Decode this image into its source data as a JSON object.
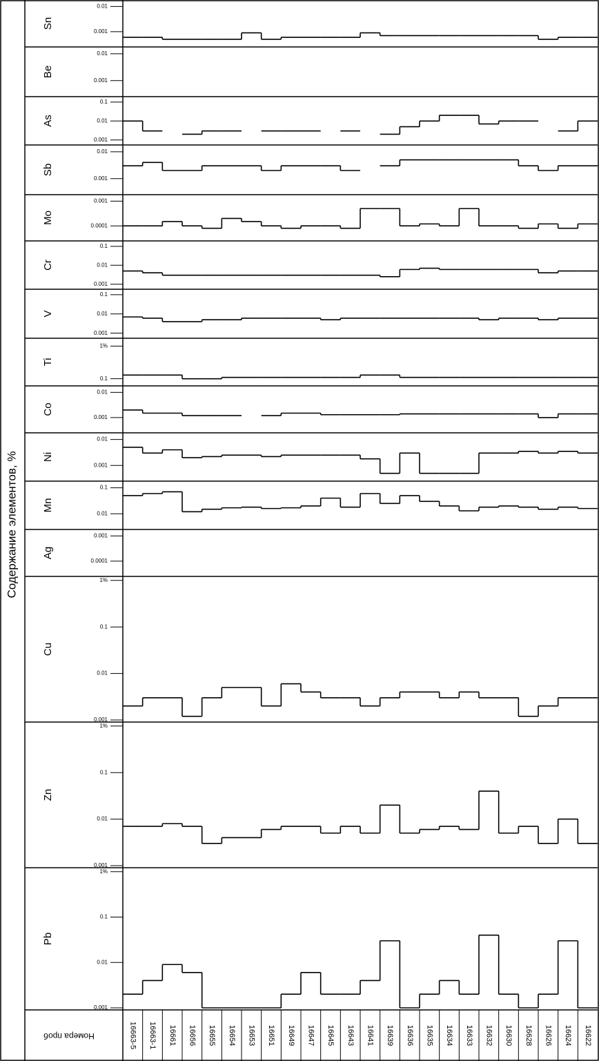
{
  "chart_data": {
    "type": "step",
    "title": "Содержание элементов, %",
    "x_label": "Номера проб",
    "log_scale": true,
    "categories": [
      "16663-5",
      "16663-1",
      "16661",
      "16656",
      "16655",
      "16654",
      "16653",
      "16651",
      "16649",
      "16647",
      "16645",
      "16643",
      "16641",
      "16639",
      "16636",
      "16635",
      "16634",
      "16633",
      "16632",
      "16630",
      "16628",
      "16626",
      "16624",
      "16622"
    ],
    "panels": [
      {
        "name": "Sn",
        "ylim": [
          0.0003,
          0.015
        ],
        "yticks": [
          0.001,
          0.01
        ],
        "values": [
          0.0006,
          0.0006,
          0.0005,
          0.0005,
          0.0005,
          0.0005,
          0.0009,
          0.0005,
          0.0006,
          0.0006,
          0.0006,
          0.0006,
          0.0009,
          0.0007,
          0.0007,
          0.0007,
          0.0007,
          0.0007,
          0.0007,
          0.0007,
          0.0007,
          0.0005,
          0.0006,
          0.0006
        ]
      },
      {
        "name": "Be",
        "ylim": [
          0.0003,
          0.015
        ],
        "yticks": [
          0.001,
          0.01
        ],
        "values": [
          null,
          null,
          null,
          null,
          null,
          null,
          null,
          null,
          null,
          null,
          null,
          null,
          null,
          null,
          null,
          null,
          null,
          null,
          null,
          null,
          null,
          null,
          null,
          null
        ]
      },
      {
        "name": "As",
        "ylim": [
          0.0007,
          0.15
        ],
        "yticks": [
          0.001,
          0.01,
          0.1
        ],
        "values": [
          0.01,
          0.003,
          null,
          0.002,
          0.003,
          0.003,
          null,
          0.003,
          0.003,
          0.003,
          null,
          0.003,
          null,
          0.002,
          0.005,
          0.01,
          0.02,
          0.02,
          0.007,
          0.01,
          0.01,
          null,
          0.003,
          0.01
        ]
      },
      {
        "name": "Sb",
        "ylim": [
          0.0003,
          0.015
        ],
        "yticks": [
          0.001,
          0.01
        ],
        "values": [
          0.003,
          0.004,
          0.002,
          0.002,
          0.003,
          0.003,
          0.003,
          0.002,
          0.003,
          0.003,
          0.003,
          0.002,
          null,
          0.003,
          0.005,
          0.005,
          0.005,
          0.005,
          0.005,
          0.005,
          0.003,
          0.002,
          0.003,
          0.003
        ]
      },
      {
        "name": "Mo",
        "ylim": [
          3e-05,
          0.0015
        ],
        "yticks": [
          0.0001,
          0.001
        ],
        "values": [
          0.0001,
          0.0001,
          0.00015,
          0.0001,
          8e-05,
          0.0002,
          0.00015,
          0.0001,
          8e-05,
          0.0001,
          0.0001,
          8e-05,
          0.0005,
          0.0005,
          0.0001,
          0.00012,
          0.0001,
          0.0005,
          0.0001,
          0.0001,
          8e-05,
          0.00012,
          8e-05,
          0.00012
        ]
      },
      {
        "name": "Cr",
        "ylim": [
          0.0007,
          0.15
        ],
        "yticks": [
          0.001,
          0.01,
          0.1
        ],
        "values": [
          0.005,
          0.004,
          0.003,
          0.003,
          0.003,
          0.003,
          0.003,
          0.003,
          0.003,
          0.003,
          0.003,
          0.003,
          0.003,
          0.0025,
          0.006,
          0.007,
          0.006,
          0.006,
          0.006,
          0.006,
          0.006,
          0.004,
          0.005,
          0.005
        ]
      },
      {
        "name": "V",
        "ylim": [
          0.0007,
          0.15
        ],
        "yticks": [
          0.001,
          0.01,
          0.1
        ],
        "values": [
          0.007,
          0.006,
          0.004,
          0.004,
          0.005,
          0.005,
          0.006,
          0.006,
          0.006,
          0.006,
          0.005,
          0.006,
          0.006,
          0.006,
          0.006,
          0.006,
          0.006,
          0.006,
          0.005,
          0.006,
          0.006,
          0.005,
          0.006,
          0.006
        ]
      },
      {
        "name": "Ti",
        "ylim": [
          0.07,
          1.5
        ],
        "yticks": [
          0.1,
          {
            "value": 1,
            "label": "1%"
          }
        ],
        "values": [
          0.13,
          0.13,
          0.13,
          0.1,
          0.1,
          0.11,
          0.11,
          0.11,
          0.11,
          0.11,
          0.11,
          0.11,
          0.13,
          0.13,
          0.11,
          0.11,
          0.11,
          0.11,
          0.11,
          0.11,
          0.11,
          0.11,
          0.11,
          0.11
        ]
      },
      {
        "name": "Co",
        "ylim": [
          0.0003,
          0.015
        ],
        "yticks": [
          0.001,
          0.01
        ],
        "values": [
          0.002,
          0.0015,
          0.0015,
          0.0012,
          0.0012,
          0.0012,
          null,
          0.0012,
          0.0015,
          0.0015,
          0.0013,
          0.0013,
          0.0013,
          0.0013,
          0.0014,
          0.0014,
          0.0014,
          0.0014,
          0.0014,
          0.0014,
          0.0014,
          0.001,
          0.0014,
          0.0014
        ]
      },
      {
        "name": "Ni",
        "ylim": [
          0.0003,
          0.015
        ],
        "yticks": [
          0.001,
          0.01
        ],
        "values": [
          0.005,
          0.003,
          0.004,
          0.002,
          0.0022,
          0.0025,
          0.0025,
          0.0022,
          0.0025,
          0.0025,
          0.0025,
          0.0025,
          0.0018,
          0.0005,
          0.003,
          0.0005,
          0.0005,
          0.0005,
          0.003,
          0.003,
          0.0035,
          0.003,
          0.0035,
          0.003
        ]
      },
      {
        "name": "Mn",
        "ylim": [
          0.003,
          0.15
        ],
        "yticks": [
          0.01,
          0.1
        ],
        "values": [
          0.05,
          0.06,
          0.07,
          0.012,
          0.015,
          0.017,
          0.018,
          0.016,
          0.017,
          0.02,
          0.04,
          0.018,
          0.06,
          0.025,
          0.05,
          0.03,
          0.02,
          0.013,
          0.018,
          0.02,
          0.018,
          0.015,
          0.018,
          0.016
        ]
      },
      {
        "name": "Ag",
        "ylim": [
          3e-05,
          0.0015
        ],
        "yticks": [
          0.0001,
          0.001
        ],
        "values": [
          null,
          null,
          null,
          null,
          null,
          null,
          null,
          null,
          null,
          null,
          null,
          null,
          null,
          null,
          null,
          null,
          null,
          null,
          null,
          null,
          null,
          null,
          null,
          null
        ]
      },
      {
        "name": "Cu",
        "ylim": [
          0.001,
          1.1
        ],
        "yticks": [
          0.001,
          0.01,
          0.1,
          {
            "value": 1,
            "label": "1%"
          }
        ],
        "values": [
          0.002,
          0.003,
          0.003,
          0.0012,
          0.003,
          0.005,
          0.005,
          0.002,
          0.006,
          0.004,
          0.003,
          0.003,
          0.002,
          0.003,
          0.004,
          0.004,
          0.003,
          0.004,
          0.003,
          0.003,
          0.0012,
          0.002,
          0.003,
          0.003
        ]
      },
      {
        "name": "Zn",
        "ylim": [
          0.001,
          1.1
        ],
        "yticks": [
          0.001,
          0.01,
          0.1,
          {
            "value": 1,
            "label": "1%"
          }
        ],
        "values": [
          0.007,
          0.007,
          0.008,
          0.007,
          0.003,
          0.004,
          0.004,
          0.006,
          0.007,
          0.007,
          0.005,
          0.007,
          0.005,
          0.02,
          0.005,
          0.006,
          0.007,
          0.006,
          0.04,
          0.005,
          0.007,
          0.003,
          0.01,
          0.003
        ]
      },
      {
        "name": "Pb",
        "ylim": [
          0.001,
          1.1
        ],
        "yticks": [
          0.001,
          0.01,
          0.1,
          {
            "value": 1,
            "label": "1%"
          }
        ],
        "values": [
          0.002,
          0.004,
          0.009,
          0.006,
          0.001,
          0.001,
          0.001,
          0.001,
          0.002,
          0.006,
          0.002,
          0.002,
          0.004,
          0.03,
          0.001,
          0.002,
          0.004,
          0.002,
          0.04,
          0.002,
          0.001,
          0.002,
          0.03,
          0.001
        ]
      }
    ]
  }
}
